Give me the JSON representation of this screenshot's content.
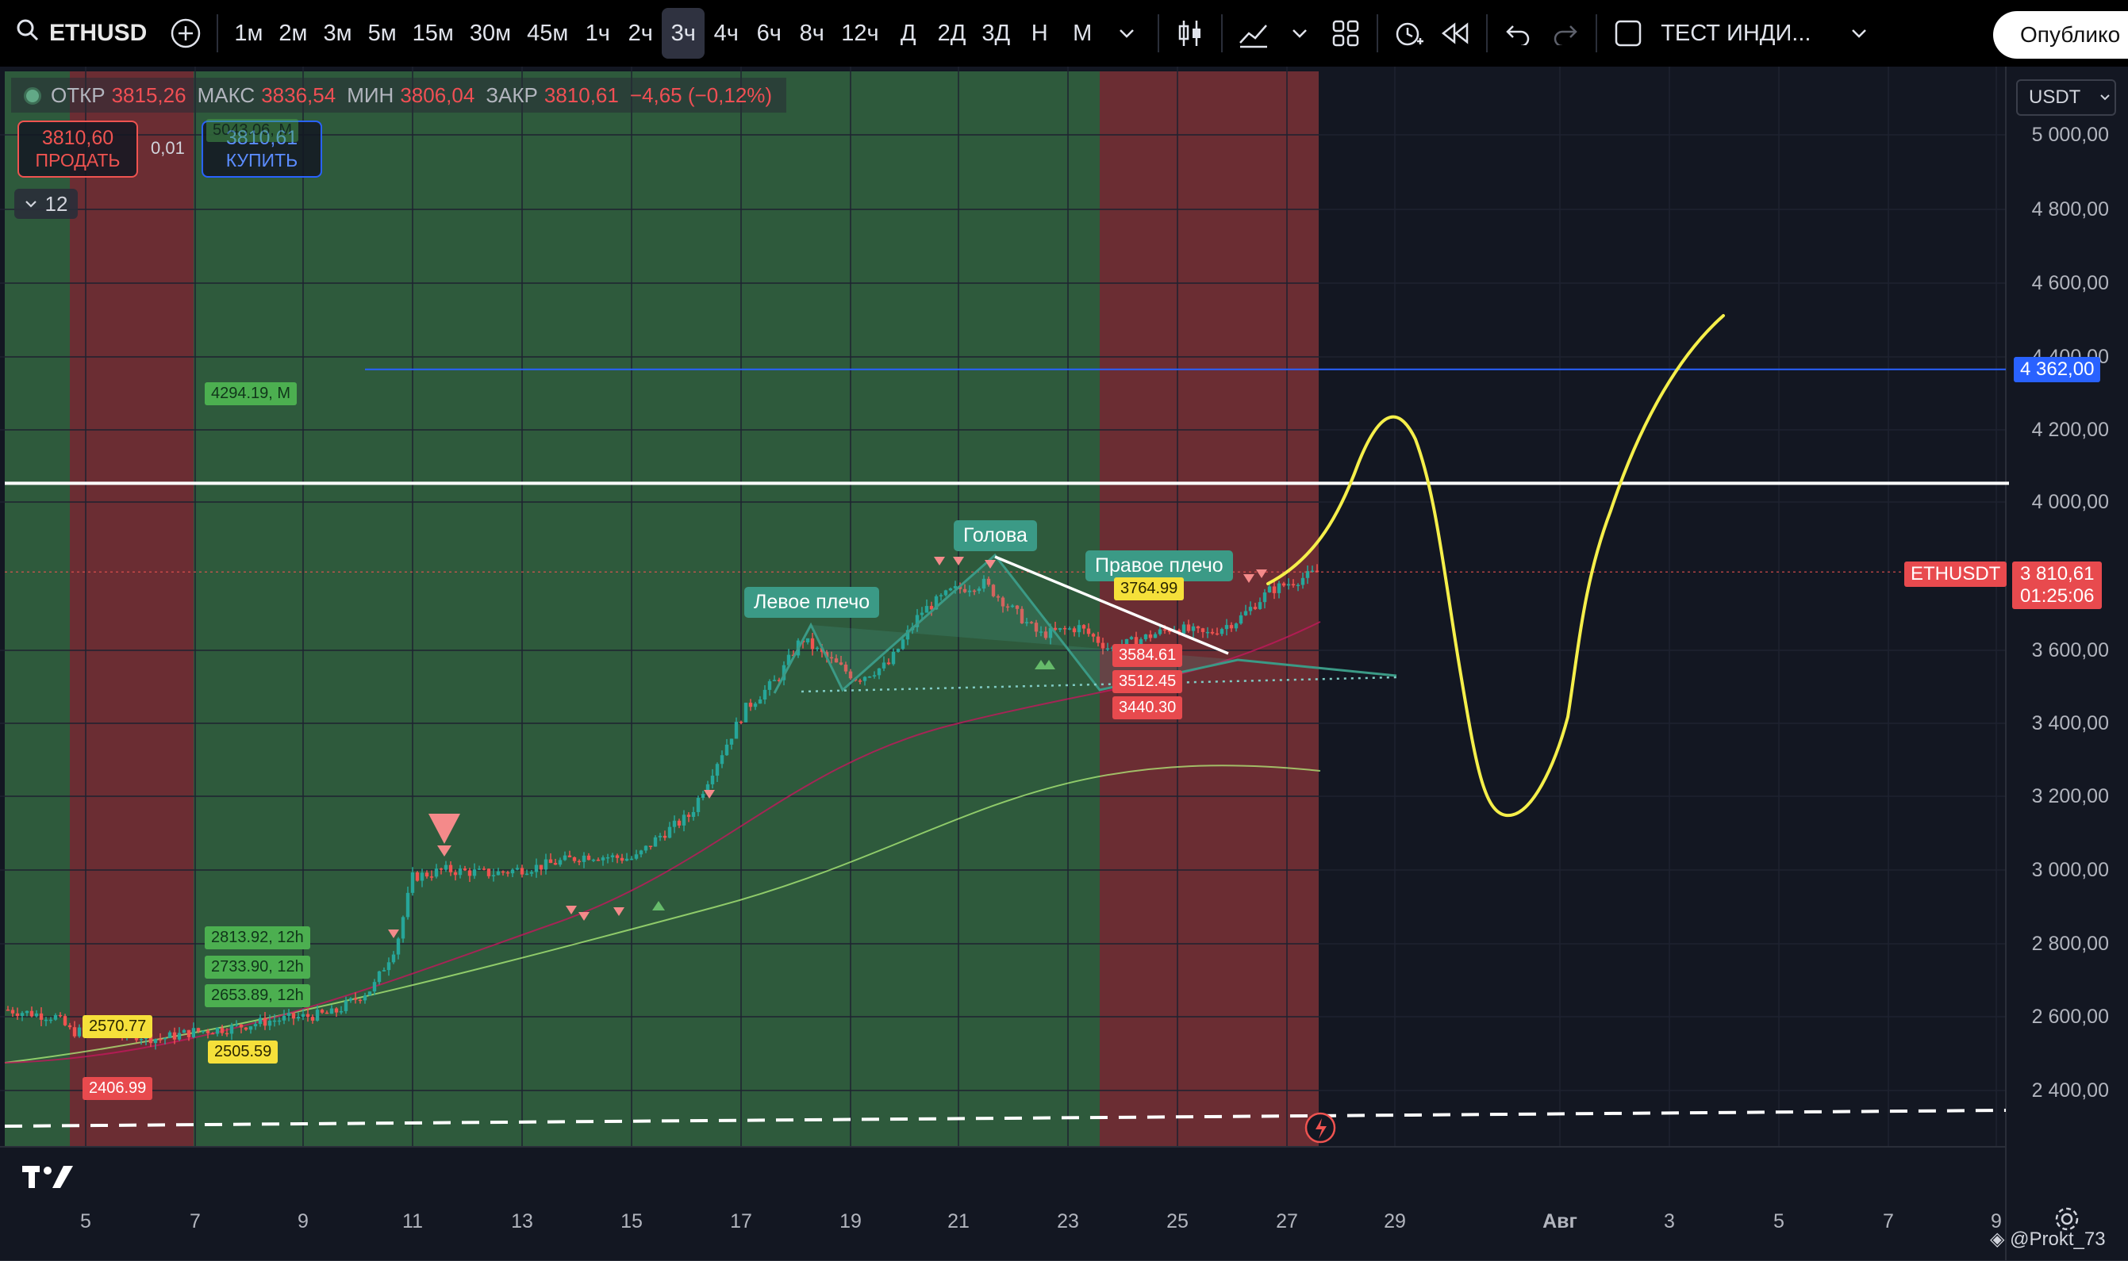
{
  "toolbar": {
    "symbol": "ETHUSD",
    "intervals": [
      "1м",
      "2м",
      "3м",
      "5м",
      "15м",
      "30м",
      "45м",
      "1ч",
      "2ч",
      "3ч",
      "4ч",
      "6ч",
      "8ч",
      "12ч",
      "Д",
      "2Д",
      "3Д",
      "Н",
      "М"
    ],
    "active_interval": "3ч",
    "layout_name": "ТЕСТ ИНДИ...",
    "publish_label": "Опублико"
  },
  "legend": {
    "open_label": "ОТКР",
    "open": "3815,26",
    "high_label": "МАКС",
    "high": "3836,54",
    "low_label": "МИН",
    "low": "3806,04",
    "close_label": "ЗАКР",
    "close": "3810,61",
    "change": "−4,65 (−0,12%)"
  },
  "trade": {
    "sell_price": "3810,60",
    "sell_label": "ПРОДАТЬ",
    "buy_price": "3810,61",
    "buy_label": "КУПИТЬ",
    "spread": "0,01",
    "indicators_count": "12"
  },
  "price_axis": {
    "currency": "USDT",
    "labels": [
      "5 000,00",
      "4 800,00",
      "4 600,00",
      "4 400,00",
      "4 200,00",
      "4 000,00",
      "3 600,00",
      "3 400,00",
      "3 200,00",
      "3 000,00",
      "2 800,00",
      "2 600,00",
      "2 400,00"
    ],
    "line_tag": "4 362,00",
    "symbol_tag": "ETHUSDT",
    "last_price": "3 810,61",
    "countdown": "01:25:06"
  },
  "time_axis": {
    "labels": [
      "5",
      "7",
      "9",
      "11",
      "13",
      "15",
      "17",
      "19",
      "21",
      "23",
      "25",
      "27",
      "29",
      "Авг",
      "3",
      "5",
      "7",
      "9"
    ]
  },
  "annotations": {
    "left_shoulder": "Левое плечо",
    "head": "Голова",
    "right_shoulder": "Правое плечо",
    "green_m": "4294.19, M",
    "green_faded": "5043.06, M",
    "green_12h_1": "2813.92, 12h",
    "green_12h_2": "2733.90, 12h",
    "green_12h_3": "2653.89, 12h",
    "yellow_1": "2570.77",
    "yellow_2": "2505.59",
    "yellow_3": "3764.99",
    "red_1": "2406.99",
    "red_2": "3584.61",
    "red_3": "3512.45",
    "red_4": "3440.30"
  },
  "colors": {
    "background": "#131722",
    "bull_zone": "#2e5a3c",
    "bear_zone": "#6b2d33",
    "up_candle": "#26a69a",
    "down_candle": "#ef5350",
    "drawing_yellow": "#f5ef4a",
    "horizontal_blue": "#2962ff"
  },
  "watermark": "@Prokt_73"
}
